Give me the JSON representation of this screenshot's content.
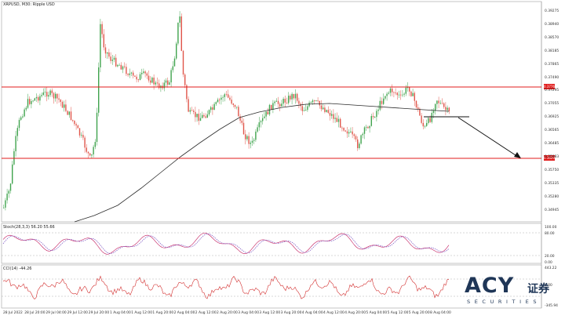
{
  "chart": {
    "title": "XRPUSD, M30: Ripple USD",
    "stoch_label": "Stoch(28,3,3) 56.20 55.66",
    "cci_label": "CCI(14) -44.26",
    "tags": [
      "0.37769",
      "0.36206"
    ]
  },
  "price_axis": [
    "0.39275",
    "0.38940",
    "0.38570",
    "0.38185",
    "0.37865",
    "0.37490",
    "0.37295",
    "0.37055",
    "0.36925",
    "0.36565",
    "0.36485",
    "0.35983",
    "0.35750",
    "0.35335",
    "0.35280",
    "0.34945"
  ],
  "stoch_axis": [
    "100.00",
    "80.00",
    "20.00",
    "0.00"
  ],
  "cci_axis": [
    "443.22",
    "0.00",
    "-345.94"
  ],
  "time_axis": [
    "28 Jul 2022",
    "28 Jul 20:00",
    "29 Jul 04:00",
    "29 Jul 12:00",
    "29 Jul 20:00",
    "1 Aug 04:00",
    "1 Aug 12:00",
    "1 Aug 20:00",
    "2 Aug 04:00",
    "2 Aug 12:00",
    "2 Aug 20:00",
    "3 Aug 04:00",
    "3 Aug 12:00",
    "3 Aug 20:00",
    "4 Aug 04:00",
    "4 Aug 12:00",
    "4 Aug 20:00",
    "5 Aug 04:00",
    "5 Aug 12:00",
    "5 Aug 20:00",
    "8 Aug 04:00"
  ],
  "logo": {
    "main": "ACY",
    "cn": "证券",
    "sub": "SECURITIES"
  },
  "colors": {
    "bull": "#3fa34d",
    "bear": "#e0554a",
    "ma": "#2b2b2b",
    "level": "#e11b1b",
    "stoch_main": "#c2185b",
    "stoch_signal": "#7e57c2",
    "cci": "#d32f2f",
    "brand": "#1f3657"
  }
}
